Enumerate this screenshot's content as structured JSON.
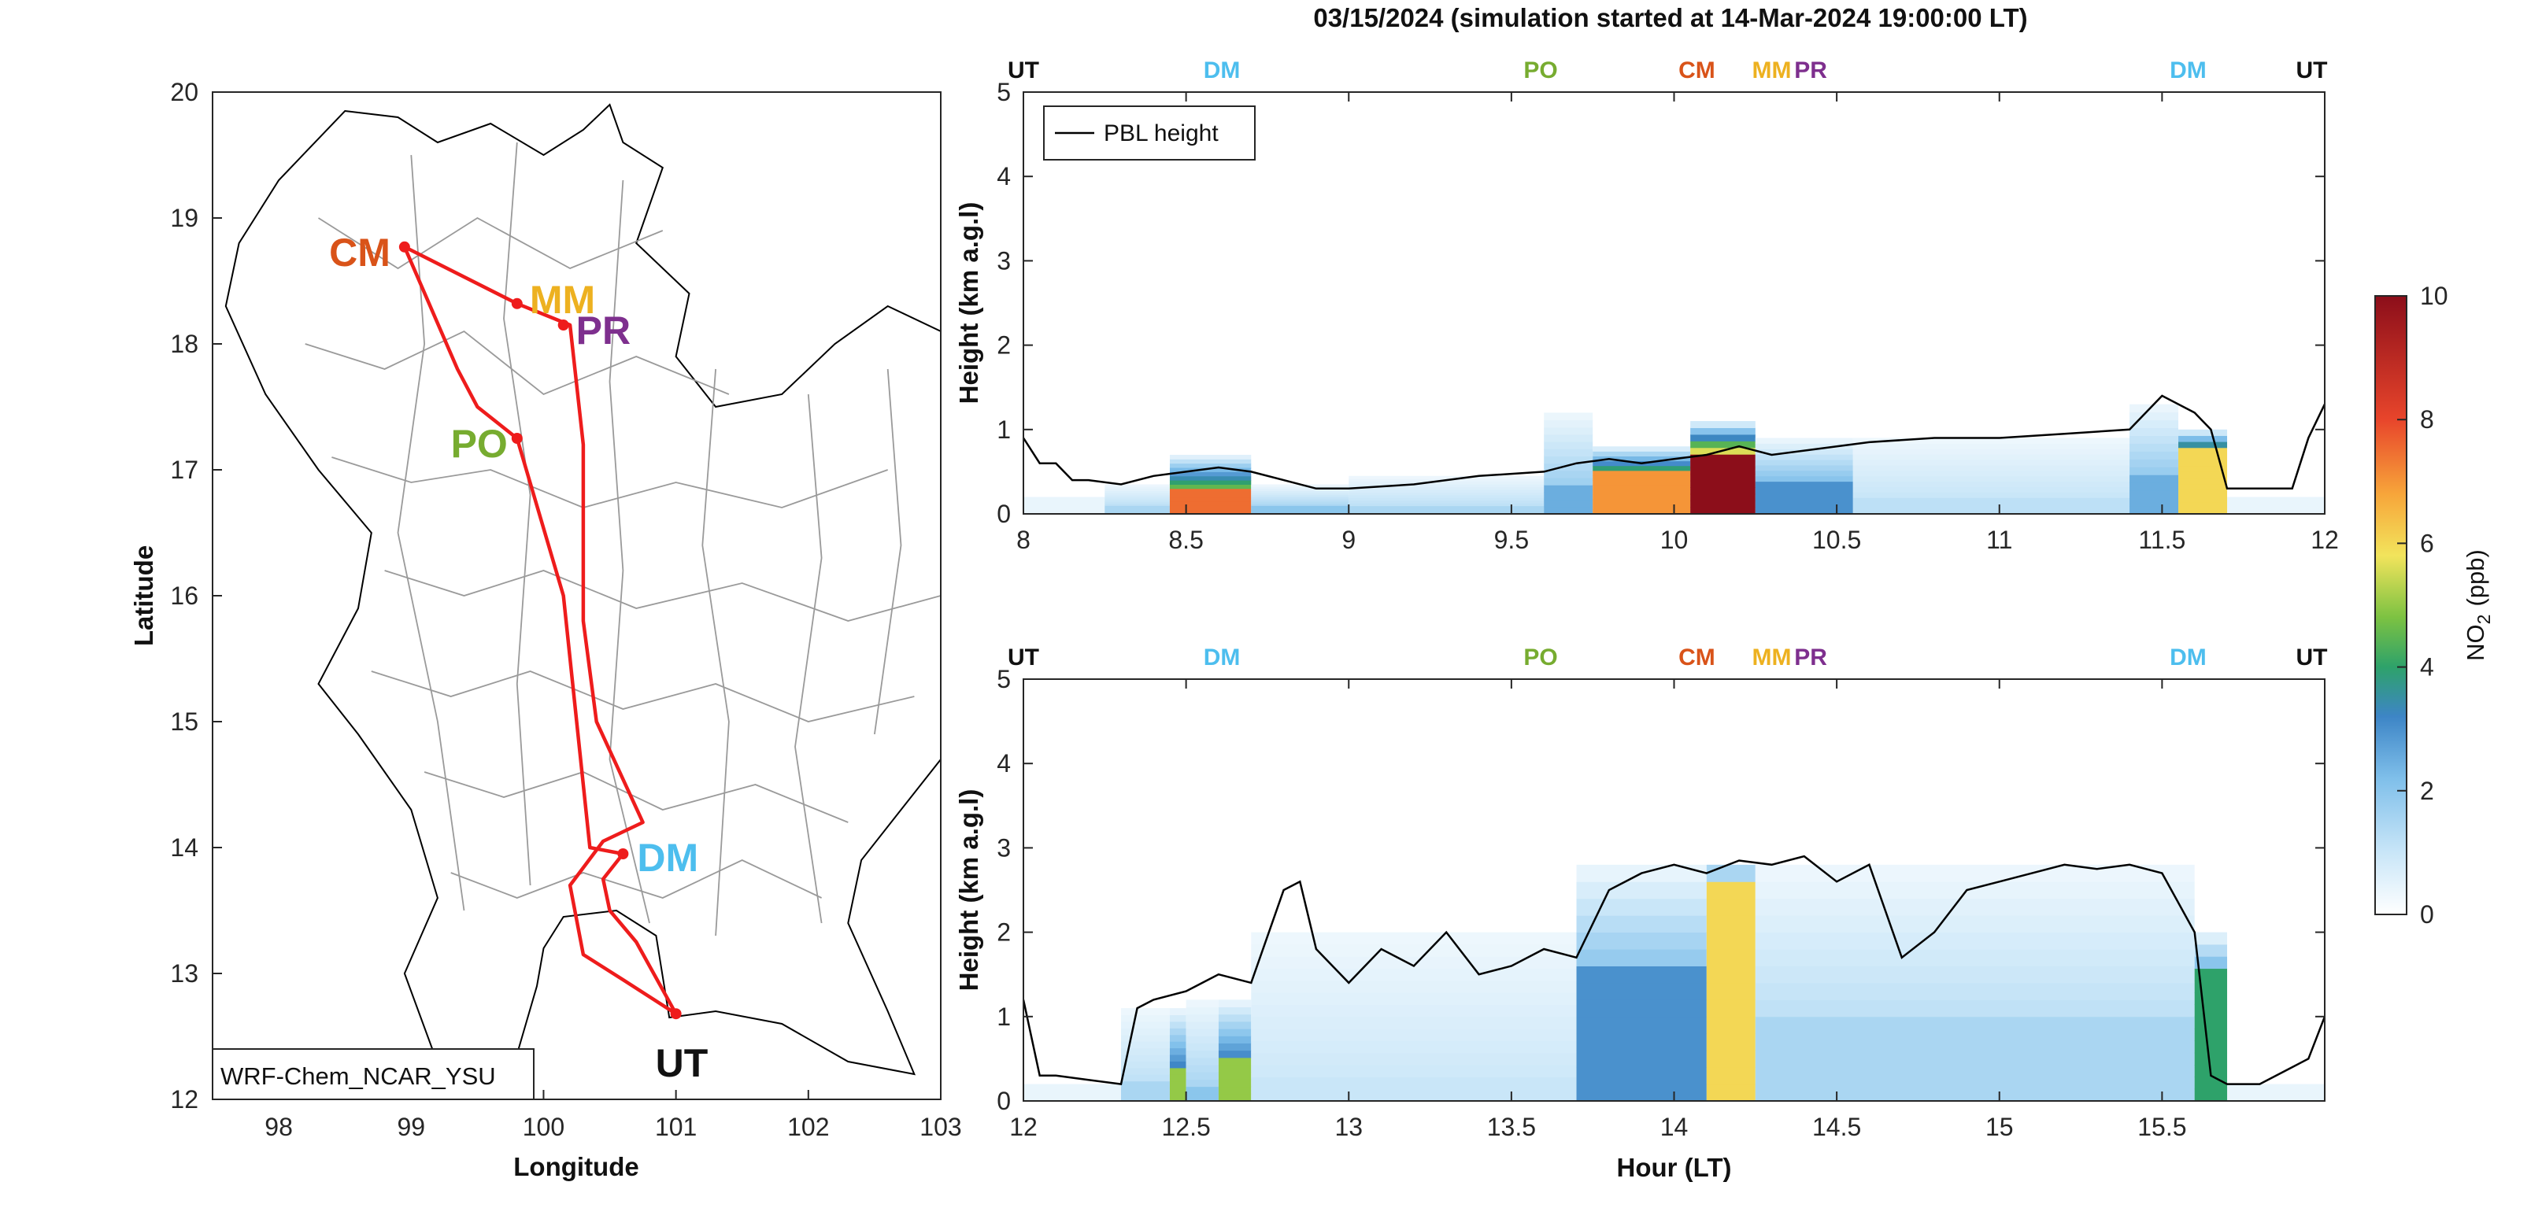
{
  "figure": {
    "title": "03/15/2024 (simulation started at 14-Mar-2024 19:00:00 LT)"
  },
  "map": {
    "xlabel": "Longitude",
    "ylabel": "Latitude",
    "xlim": [
      97.5,
      103
    ],
    "ylim": [
      12,
      20
    ],
    "xticks": [
      "98",
      "99",
      "100",
      "101",
      "102",
      "103"
    ],
    "yticks": [
      "12",
      "13",
      "14",
      "15",
      "16",
      "17",
      "18",
      "19",
      "20"
    ],
    "model_label": "WRF-Chem_NCAR_YSU",
    "route_color": "#ee1c1c",
    "route": [
      [
        98.95,
        18.77
      ],
      [
        99.35,
        17.8
      ],
      [
        99.5,
        17.5
      ],
      [
        99.8,
        17.25
      ],
      [
        100.15,
        16.0
      ],
      [
        100.3,
        14.5
      ],
      [
        100.35,
        14.0
      ],
      [
        100.6,
        13.95
      ],
      [
        100.45,
        13.75
      ],
      [
        100.5,
        13.5
      ],
      [
        100.7,
        13.25
      ],
      [
        101.0,
        12.68
      ],
      [
        100.6,
        12.95
      ],
      [
        100.3,
        13.15
      ],
      [
        100.2,
        13.7
      ],
      [
        100.45,
        14.05
      ],
      [
        100.75,
        14.2
      ],
      [
        100.4,
        15.0
      ],
      [
        100.3,
        15.8
      ],
      [
        100.3,
        16.5
      ],
      [
        100.3,
        17.2
      ],
      [
        100.2,
        18.15
      ],
      [
        99.8,
        18.32
      ],
      [
        98.95,
        18.77
      ]
    ],
    "sites": [
      {
        "code": "CM",
        "lon": 98.95,
        "lat": 18.77,
        "color": "#d95319"
      },
      {
        "code": "MM",
        "lon": 99.8,
        "lat": 18.32,
        "color": "#edb120"
      },
      {
        "code": "PR",
        "lon": 100.15,
        "lat": 18.15,
        "color": "#7e2f8e"
      },
      {
        "code": "PO",
        "lon": 99.8,
        "lat": 17.25,
        "color": "#77ac30"
      },
      {
        "code": "DM",
        "lon": 100.6,
        "lat": 13.95,
        "color": "#4dbeee"
      },
      {
        "code": "UT",
        "lon": 101.0,
        "lat": 12.68,
        "color": "#111111"
      }
    ]
  },
  "colorbar": {
    "label": "NO",
    "label_sub": "2",
    "label_unit": "(ppb)",
    "ticks": [
      "0",
      "2",
      "4",
      "6",
      "8",
      "10"
    ],
    "range": [
      0,
      10
    ]
  },
  "chart_data": [
    {
      "type": "heatmap",
      "panel": "top",
      "xlim": [
        8,
        12
      ],
      "ylim": [
        0,
        5
      ],
      "xticks": [
        "8",
        "8.5",
        "9",
        "9.5",
        "10",
        "10.5",
        "11",
        "11.5",
        "12"
      ],
      "yticks": [
        "0",
        "1",
        "2",
        "3",
        "4",
        "5"
      ],
      "ylabel": "Height (km a.g.l)",
      "legend": "PBL height",
      "legend_position": "top-left",
      "site_labels": [
        {
          "code": "UT",
          "x": 8.0,
          "color": "#111111"
        },
        {
          "code": "DM",
          "x": 8.61,
          "color": "#4dbeee"
        },
        {
          "code": "PO",
          "x": 9.59,
          "color": "#77ac30"
        },
        {
          "code": "CM",
          "x": 10.07,
          "color": "#d95319"
        },
        {
          "code": "MM",
          "x": 10.3,
          "color": "#edb120"
        },
        {
          "code": "PR",
          "x": 10.42,
          "color": "#7e2f8e"
        },
        {
          "code": "DM",
          "x": 11.58,
          "color": "#4dbeee"
        },
        {
          "code": "UT",
          "x": 11.96,
          "color": "#111111"
        }
      ],
      "pbl_height": {
        "x": [
          8,
          8.05,
          8.1,
          8.15,
          8.2,
          8.3,
          8.4,
          8.5,
          8.6,
          8.7,
          8.8,
          8.9,
          9.0,
          9.2,
          9.4,
          9.6,
          9.7,
          9.8,
          9.9,
          10.0,
          10.1,
          10.2,
          10.3,
          10.4,
          10.5,
          10.6,
          10.8,
          11.0,
          11.2,
          11.4,
          11.5,
          11.6,
          11.65,
          11.7,
          11.8,
          11.9,
          11.95,
          12
        ],
        "y": [
          0.9,
          0.6,
          0.6,
          0.4,
          0.4,
          0.35,
          0.45,
          0.5,
          0.55,
          0.5,
          0.4,
          0.3,
          0.3,
          0.35,
          0.45,
          0.5,
          0.6,
          0.65,
          0.6,
          0.65,
          0.7,
          0.8,
          0.7,
          0.75,
          0.8,
          0.85,
          0.9,
          0.9,
          0.95,
          1.0,
          1.4,
          1.2,
          1.0,
          0.3,
          0.3,
          0.3,
          0.9,
          1.3
        ]
      },
      "no2_columns": [
        {
          "x0": 8.25,
          "x1": 8.45,
          "top": 0.35,
          "peak": 1.5,
          "peak_height": 0.1
        },
        {
          "x0": 8.45,
          "x1": 8.7,
          "top": 0.7,
          "peak": 7.5,
          "peak_height": 0.3
        },
        {
          "x0": 8.7,
          "x1": 9.0,
          "top": 0.35,
          "peak": 2.0,
          "peak_height": 0.1
        },
        {
          "x0": 9.0,
          "x1": 9.6,
          "top": 0.45,
          "peak": 1.5,
          "peak_height": 0.1
        },
        {
          "x0": 9.6,
          "x1": 9.75,
          "top": 1.2,
          "peak": 2.5,
          "peak_height": 0.3
        },
        {
          "x0": 9.75,
          "x1": 10.05,
          "top": 0.8,
          "peak": 7.0,
          "peak_height": 0.5
        },
        {
          "x0": 10.05,
          "x1": 10.25,
          "top": 1.1,
          "peak": 10.0,
          "peak_height": 0.7
        },
        {
          "x0": 10.25,
          "x1": 10.55,
          "top": 0.9,
          "peak": 3.0,
          "peak_height": 0.4
        },
        {
          "x0": 10.55,
          "x1": 11.4,
          "top": 0.9,
          "peak": 1.2,
          "peak_height": 0.2
        },
        {
          "x0": 11.4,
          "x1": 11.55,
          "top": 1.3,
          "peak": 2.5,
          "peak_height": 0.5
        },
        {
          "x0": 11.55,
          "x1": 11.7,
          "top": 1.0,
          "peak": 6.0,
          "peak_height": 0.8
        }
      ]
    },
    {
      "type": "heatmap",
      "panel": "bottom",
      "xlim": [
        12,
        16
      ],
      "ylim": [
        0,
        5
      ],
      "xticks": [
        "12",
        "12.5",
        "13",
        "13.5",
        "14",
        "14.5",
        "15",
        "15.5"
      ],
      "yticks": [
        "0",
        "1",
        "2",
        "3",
        "4",
        "5"
      ],
      "xlabel": "Hour (LT)",
      "ylabel": "Height (km a.g.l)",
      "site_labels": [
        {
          "code": "UT",
          "x": 12.0,
          "color": "#111111"
        },
        {
          "code": "DM",
          "x": 12.61,
          "color": "#4dbeee"
        },
        {
          "code": "PO",
          "x": 13.59,
          "color": "#77ac30"
        },
        {
          "code": "CM",
          "x": 14.07,
          "color": "#d95319"
        },
        {
          "code": "MM",
          "x": 14.3,
          "color": "#edb120"
        },
        {
          "code": "PR",
          "x": 14.42,
          "color": "#7e2f8e"
        },
        {
          "code": "DM",
          "x": 15.58,
          "color": "#4dbeee"
        },
        {
          "code": "UT",
          "x": 15.96,
          "color": "#111111"
        }
      ],
      "pbl_height": {
        "x": [
          12,
          12.05,
          12.1,
          12.2,
          12.3,
          12.35,
          12.4,
          12.5,
          12.6,
          12.7,
          12.8,
          12.85,
          12.9,
          13.0,
          13.1,
          13.2,
          13.3,
          13.4,
          13.5,
          13.6,
          13.7,
          13.8,
          13.9,
          14.0,
          14.1,
          14.2,
          14.3,
          14.4,
          14.5,
          14.6,
          14.7,
          14.8,
          14.9,
          15.0,
          15.1,
          15.2,
          15.3,
          15.4,
          15.5,
          15.6,
          15.65,
          15.7,
          15.8,
          15.9,
          15.95,
          16
        ],
        "y": [
          1.2,
          0.3,
          0.3,
          0.25,
          0.2,
          1.1,
          1.2,
          1.3,
          1.5,
          1.4,
          2.5,
          2.6,
          1.8,
          1.4,
          1.8,
          1.6,
          2.0,
          1.5,
          1.6,
          1.8,
          1.7,
          2.5,
          2.7,
          2.8,
          2.7,
          2.85,
          2.8,
          2.9,
          2.6,
          2.8,
          1.7,
          2.0,
          2.5,
          2.6,
          2.7,
          2.8,
          2.75,
          2.8,
          2.7,
          2.0,
          0.3,
          0.2,
          0.2,
          0.4,
          0.5,
          1.0
        ]
      },
      "no2_columns": [
        {
          "x0": 12.3,
          "x1": 12.45,
          "top": 1.1,
          "peak": 1.5,
          "peak_height": 0.2
        },
        {
          "x0": 12.45,
          "x1": 12.5,
          "top": 1.1,
          "peak": 5.0,
          "peak_height": 0.4
        },
        {
          "x0": 12.5,
          "x1": 12.6,
          "top": 1.2,
          "peak": 2.0,
          "peak_height": 0.2
        },
        {
          "x0": 12.6,
          "x1": 12.7,
          "top": 1.2,
          "peak": 5.0,
          "peak_height": 0.5
        },
        {
          "x0": 12.7,
          "x1": 13.7,
          "top": 2.0,
          "peak": 1.0,
          "peak_height": 0.3
        },
        {
          "x0": 13.7,
          "x1": 14.1,
          "top": 2.8,
          "peak": 3.0,
          "peak_height": 1.5
        },
        {
          "x0": 14.1,
          "x1": 14.25,
          "top": 2.8,
          "peak": 6.0,
          "peak_height": 2.5
        },
        {
          "x0": 14.25,
          "x1": 15.6,
          "top": 2.8,
          "peak": 1.5,
          "peak_height": 1.0
        },
        {
          "x0": 15.6,
          "x1": 15.7,
          "top": 2.0,
          "peak": 4.0,
          "peak_height": 1.5
        }
      ]
    }
  ]
}
